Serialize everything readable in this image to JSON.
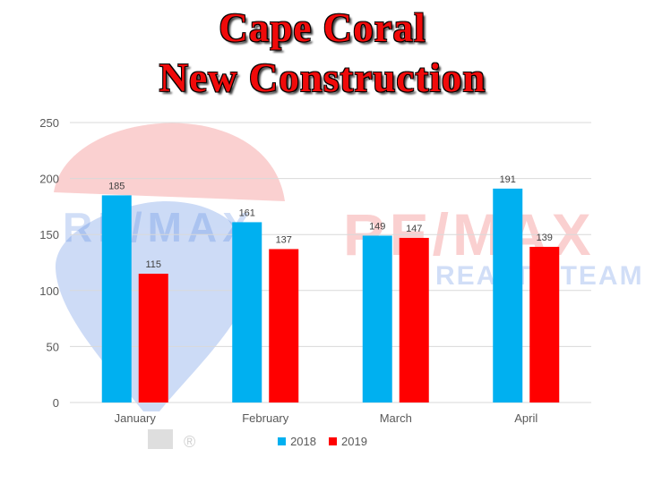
{
  "title": {
    "line1": "Cape Coral",
    "line2": "New Construction"
  },
  "watermark": {
    "brand": "RE/MAX",
    "team": "REALTY TEAM",
    "registered": "®"
  },
  "colors": {
    "series_2018": "#00b0f0",
    "series_2019": "#ff0000",
    "gridline": "#d9d9d9",
    "title": "#f00a0a"
  },
  "chart_data": {
    "type": "bar",
    "categories": [
      "January",
      "February",
      "March",
      "April"
    ],
    "series": [
      {
        "name": "2018",
        "values": [
          185,
          161,
          149,
          191
        ]
      },
      {
        "name": "2019",
        "values": [
          115,
          137,
          147,
          139
        ]
      }
    ],
    "ylim": [
      0,
      250
    ],
    "yticks": [
      0,
      50,
      100,
      150,
      200,
      250
    ],
    "grid": true,
    "legend": "bottom",
    "data_labels": true
  }
}
